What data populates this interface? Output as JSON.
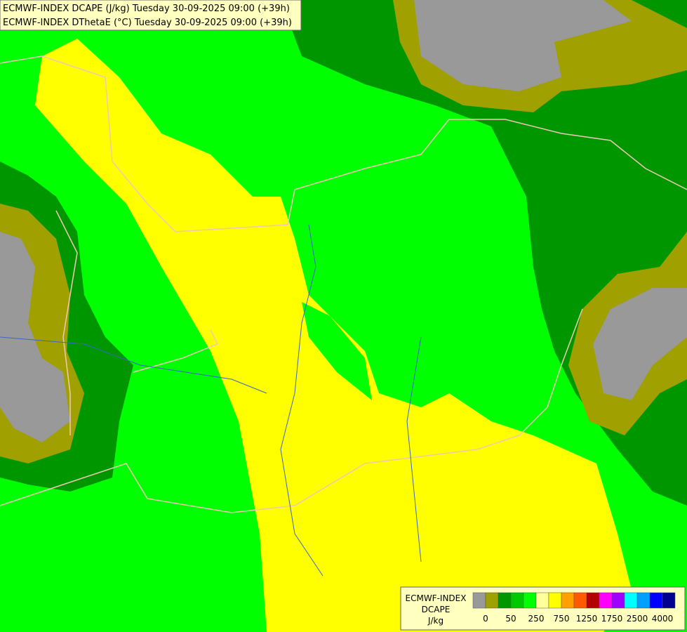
{
  "header": {
    "lines": [
      "ECMWF-INDEX DCAPE (J/kg) Tuesday 30-09-2025 09:00 (+39h)",
      "ECMWF-INDEX DThetaE (°C) Tuesday 30-09-2025 09:00 (+39h)"
    ]
  },
  "legend": {
    "title": [
      "ECMWF-INDEX",
      "DCAPE"
    ],
    "unit": "J/kg",
    "colors": [
      "#999999",
      "#a0a000",
      "#009600",
      "#00c800",
      "#00ff00",
      "#ffff9b",
      "#ffff00",
      "#ffa000",
      "#ff5a00",
      "#b40000",
      "#ff00ff",
      "#a000ff",
      "#00ffff",
      "#00a0ff",
      "#0000ff",
      "#000090"
    ],
    "labels": [
      "0",
      "50",
      "250",
      "750",
      "1250",
      "1750",
      "2500",
      "4000"
    ]
  }
}
